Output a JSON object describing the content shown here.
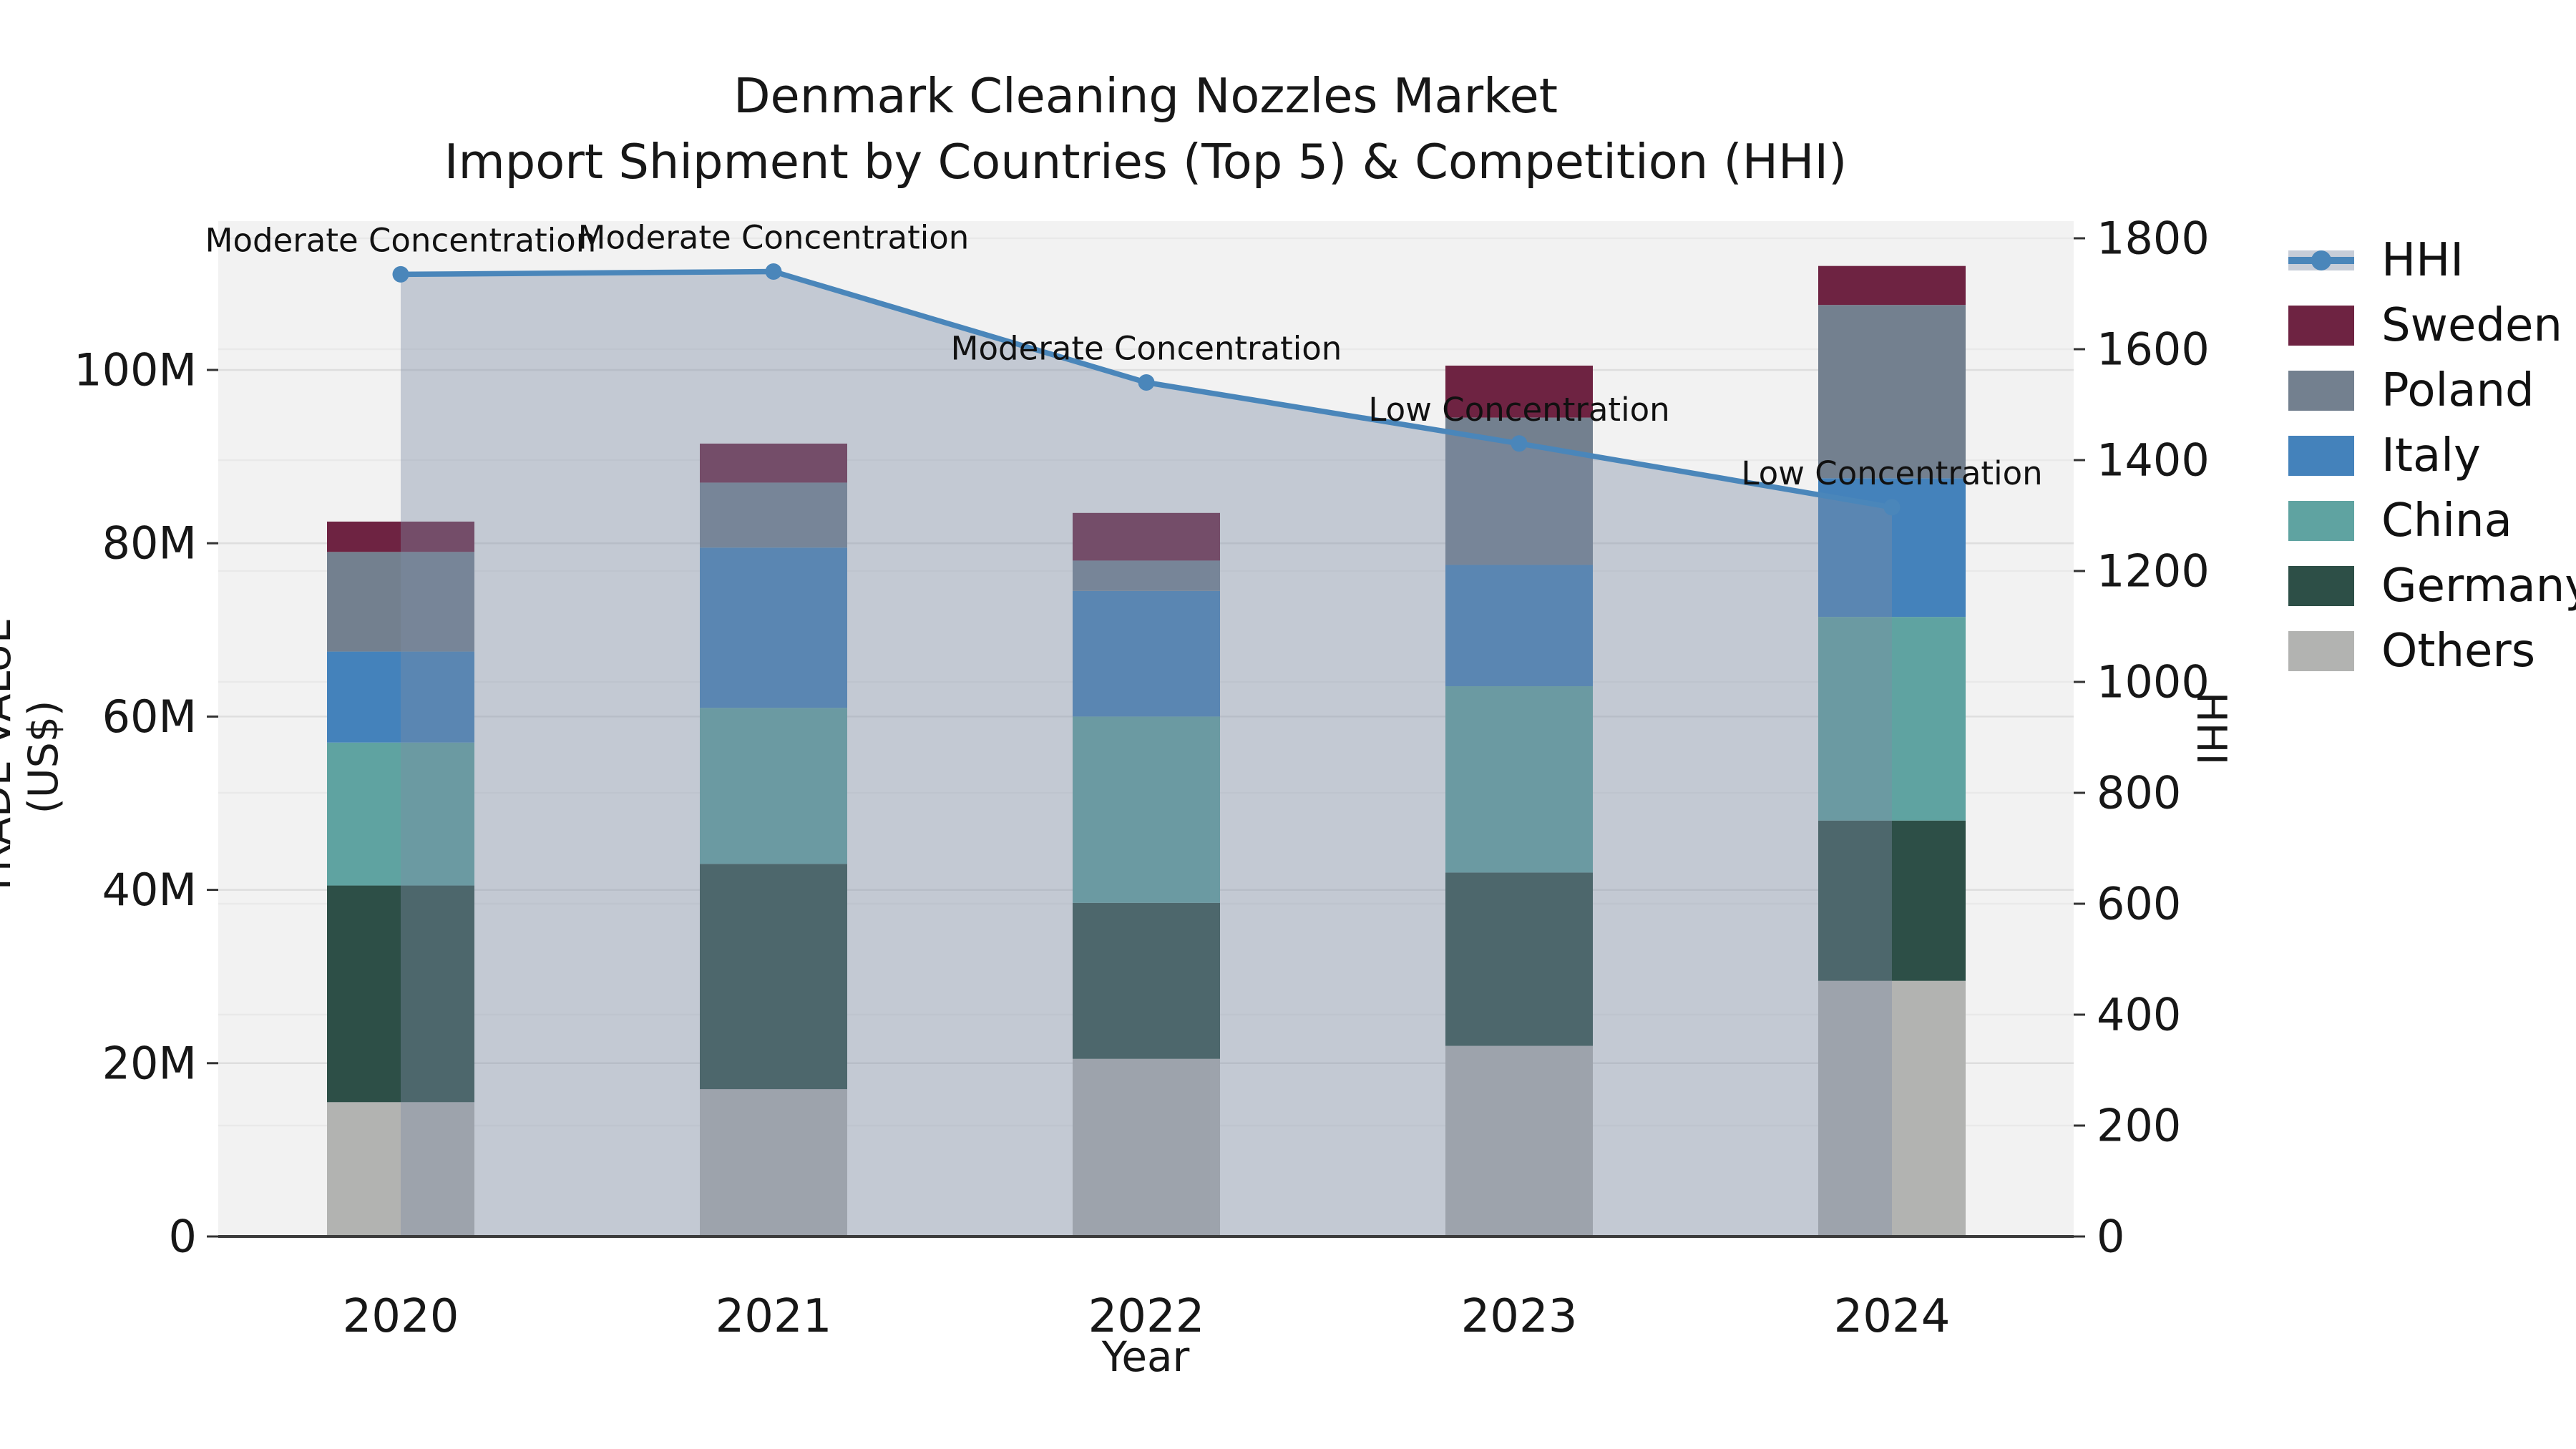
{
  "title": {
    "line1": "Denmark Cleaning Nozzles Market",
    "line2": "Import Shipment by Countries (Top 5) & Competition (HHI)"
  },
  "axes": {
    "x_label": "Year",
    "y_left_label": "TRADE VALUE (US$)",
    "y_right_label": "HHI"
  },
  "legend": {
    "items": [
      {
        "label": "HHI"
      },
      {
        "label": "Sweden"
      },
      {
        "label": "Poland"
      },
      {
        "label": "Italy"
      },
      {
        "label": "China"
      },
      {
        "label": "Germany"
      },
      {
        "label": "Others"
      }
    ]
  },
  "chart_data": {
    "type": "bar",
    "subtype": "stacked-bars-with-line-overlay",
    "title": "Denmark Cleaning Nozzles Market — Import Shipment by Countries (Top 5) & Competition (HHI)",
    "xlabel": "Year",
    "ylabel_left": "TRADE VALUE (US$)",
    "ylabel_right": "HHI",
    "categories": [
      "2020",
      "2021",
      "2022",
      "2023",
      "2024"
    ],
    "units": "M US$",
    "series": [
      {
        "name": "Others",
        "color": "#b2b3b1",
        "values": [
          15.5,
          17.0,
          20.5,
          22.0,
          29.5
        ]
      },
      {
        "name": "Germany",
        "color": "#2d4f47",
        "values": [
          25.0,
          26.0,
          18.0,
          20.0,
          18.5
        ]
      },
      {
        "name": "China",
        "color": "#5fa3a1",
        "values": [
          16.5,
          18.0,
          21.5,
          21.5,
          23.5
        ]
      },
      {
        "name": "Italy",
        "color": "#4482bb",
        "values": [
          10.5,
          18.5,
          14.5,
          14.0,
          16.0
        ]
      },
      {
        "name": "Poland",
        "color": "#73808f",
        "values": [
          11.5,
          7.5,
          3.5,
          17.0,
          20.0
        ]
      },
      {
        "name": "Sweden",
        "color": "#6e2342",
        "values": [
          3.5,
          4.5,
          5.5,
          6.0,
          4.5
        ]
      }
    ],
    "bar_totals": [
      82.5,
      91.5,
      83.5,
      100.5,
      112.0
    ],
    "line_series": {
      "name": "HHI",
      "color": "#4a86ba",
      "fill_color": "rgba(125,140,165,0.40)",
      "values": [
        1735,
        1740,
        1540,
        1430,
        1315
      ],
      "annotations": [
        "Moderate Concentration",
        "Moderate Concentration",
        "Moderate Concentration",
        "Low Concentration",
        "Low Concentration"
      ]
    },
    "ylim_left": [
      0,
      117
    ],
    "ylim_right": [
      0,
      1800
    ],
    "y_left_ticks": [
      {
        "v": 0,
        "label": "0"
      },
      {
        "v": 20,
        "label": "20M"
      },
      {
        "v": 40,
        "label": "40M"
      },
      {
        "v": 60,
        "label": "60M"
      },
      {
        "v": 80,
        "label": "80M"
      },
      {
        "v": 100,
        "label": "100M"
      }
    ],
    "y_right_ticks": [
      {
        "v": 0,
        "label": "0"
      },
      {
        "v": 200,
        "label": "200"
      },
      {
        "v": 400,
        "label": "400"
      },
      {
        "v": 600,
        "label": "600"
      },
      {
        "v": 800,
        "label": "800"
      },
      {
        "v": 1000,
        "label": "1000"
      },
      {
        "v": 1200,
        "label": "1200"
      },
      {
        "v": 1400,
        "label": "1400"
      },
      {
        "v": 1600,
        "label": "1600"
      },
      {
        "v": 1800,
        "label": "1800"
      }
    ],
    "grid": true,
    "legend_position": "right",
    "plot_bg_color": "#f2f2f2",
    "text_color": "#171717"
  }
}
